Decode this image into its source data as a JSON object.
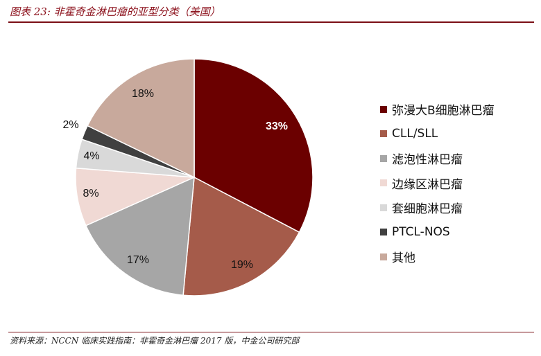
{
  "header": {
    "title": "图表 23: 非霍奇金淋巴瘤的亚型分类（美国）"
  },
  "footer": {
    "source": "资料来源：NCCN 临床实践指南：非霍奇金淋巴瘤 2017 版，中金公司研究部"
  },
  "colors": {
    "accent": "#7a0e15"
  },
  "chart_data": {
    "type": "pie",
    "title": "",
    "slices": [
      {
        "label": "弥漫大B细胞淋巴瘤",
        "value": 33,
        "value_label": "33%",
        "color": "#6b0000"
      },
      {
        "label": "CLL/SLL",
        "value": 19,
        "value_label": "19%",
        "color": "#a55b4a"
      },
      {
        "label": "滤泡性淋巴瘤",
        "value": 17,
        "value_label": "17%",
        "color": "#a6a6a6"
      },
      {
        "label": "边缘区淋巴瘤",
        "value": 8,
        "value_label": "8%",
        "color": "#f0d9d4"
      },
      {
        "label": "套细胞淋巴瘤",
        "value": 4,
        "value_label": "4%",
        "color": "#d9d9d9"
      },
      {
        "label": "PTCL-NOS",
        "value": 2,
        "value_label": "2%",
        "color": "#404040"
      },
      {
        "label": "其他",
        "value": 18,
        "value_label": "18%",
        "color": "#c8a99c"
      }
    ],
    "legend_position": "right",
    "start_angle": "12 o'clock",
    "direction": "clockwise"
  }
}
